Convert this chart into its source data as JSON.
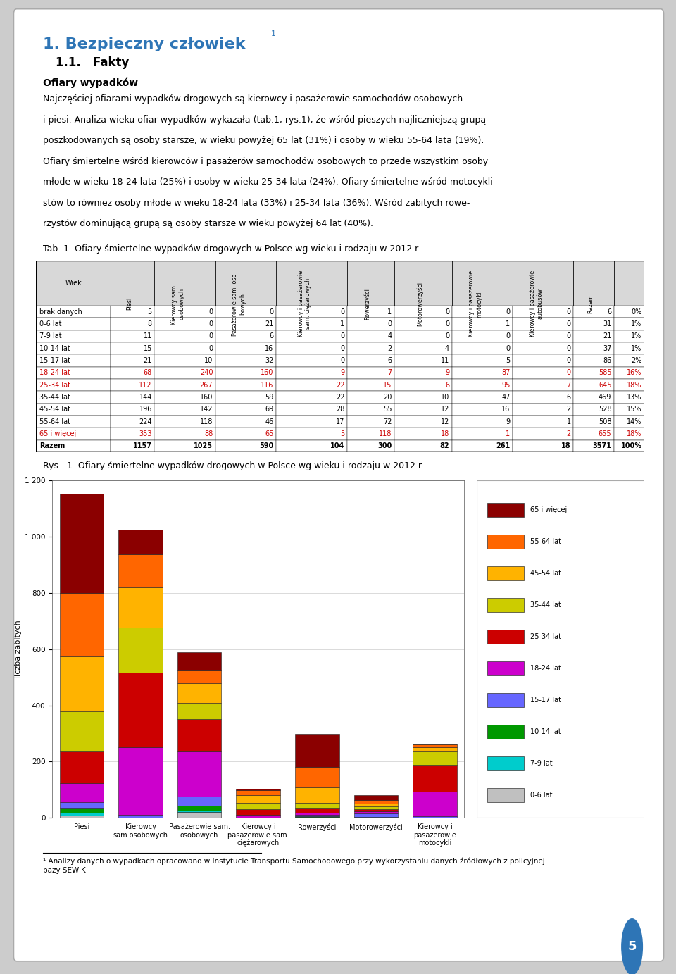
{
  "title_main": "1. Bezpieczny człowiek",
  "title_super": "1",
  "subtitle": "1.1.   Fakty",
  "section_title": "Ofiary wypadków",
  "tab_title": "Tab. 1. Ofiary śmiertelne wypadków drogowych w Polsce wg wieku i rodzaju w 2012 r.",
  "chart_title": "Rys.  1. Ofiary śmiertelne wypadków drogowych w Polsce wg wieku i rodzaju w 2012 r.",
  "row_labels": [
    "brak danych",
    "0-6 lat",
    "7-9 lat",
    "10-14 lat",
    "15-17 lat",
    "18-24 lat",
    "25-34 lat",
    "35-44 lat",
    "45-54 lat",
    "55-64 lat",
    "65 i więcej",
    "Razem"
  ],
  "highlighted_rows": [
    5,
    6,
    10
  ],
  "table_data": [
    [
      5,
      0,
      0,
      0,
      1,
      0,
      0,
      0,
      6,
      "0%"
    ],
    [
      8,
      0,
      21,
      1,
      0,
      0,
      1,
      0,
      31,
      "1%"
    ],
    [
      11,
      0,
      6,
      0,
      4,
      0,
      0,
      0,
      21,
      "1%"
    ],
    [
      15,
      0,
      16,
      0,
      2,
      4,
      0,
      0,
      37,
      "1%"
    ],
    [
      21,
      10,
      32,
      0,
      6,
      11,
      5,
      0,
      86,
      "2%"
    ],
    [
      68,
      240,
      160,
      9,
      7,
      9,
      87,
      0,
      585,
      "16%"
    ],
    [
      112,
      267,
      116,
      22,
      15,
      6,
      95,
      7,
      645,
      "18%"
    ],
    [
      144,
      160,
      59,
      22,
      20,
      10,
      47,
      6,
      469,
      "13%"
    ],
    [
      196,
      142,
      69,
      28,
      55,
      12,
      16,
      2,
      528,
      "15%"
    ],
    [
      224,
      118,
      46,
      17,
      72,
      12,
      9,
      1,
      508,
      "14%"
    ],
    [
      353,
      88,
      65,
      5,
      118,
      18,
      1,
      2,
      655,
      "18%"
    ],
    [
      1157,
      1025,
      590,
      104,
      300,
      82,
      261,
      18,
      3571,
      "100%"
    ]
  ],
  "col_header_texts": [
    "Wiek",
    "Piesi",
    "Kierowcy sam.\nosobowych",
    "Pasażerowie sam. oso-\nbowych",
    "Kierowcy i pasażerowie\nsam. ciężarowych",
    "Rowerzyści",
    "Motorowerzyści",
    "Kierowcy i pasażerowie\nmotocykli",
    "Kierowcy i pasażerowie\nautobusów",
    "Razem"
  ],
  "age_groups": [
    "0-6 lat",
    "7-9 lat",
    "10-14 lat",
    "15-17 lat",
    "18-24 lat",
    "25-34 lat",
    "35-44 lat",
    "45-54 lat",
    "55-64 lat",
    "65 i więcej"
  ],
  "bar_categories": [
    "Piesi",
    "Kierowcy\nsam.osobowych",
    "Pasażerowie sam.\nosobowych",
    "Kierowcy i\npasażerowie sam.\nciężarowych",
    "Rowerzyści",
    "Motorowerzyści",
    "Kierowcy i\npasażerowie\nmotocykli"
  ],
  "bar_data": {
    "0-6 lat": [
      8,
      0,
      21,
      1,
      0,
      0,
      1
    ],
    "7-9 lat": [
      11,
      0,
      6,
      0,
      4,
      0,
      0
    ],
    "10-14 lat": [
      15,
      0,
      16,
      0,
      2,
      4,
      0
    ],
    "15-17 lat": [
      21,
      10,
      32,
      0,
      6,
      11,
      5
    ],
    "18-24 lat": [
      68,
      240,
      160,
      9,
      7,
      9,
      87
    ],
    "25-34 lat": [
      112,
      267,
      116,
      22,
      15,
      6,
      95
    ],
    "35-44 lat": [
      144,
      160,
      59,
      22,
      20,
      10,
      47
    ],
    "45-54 lat": [
      196,
      142,
      69,
      28,
      55,
      12,
      16
    ],
    "55-64 lat": [
      224,
      118,
      46,
      17,
      72,
      12,
      9
    ],
    "65 i więcej": [
      353,
      88,
      65,
      5,
      118,
      18,
      1
    ]
  },
  "age_colors": {
    "65 i więcej": "#8B0000",
    "55-64 lat": "#FF6600",
    "45-54 lat": "#FFB300",
    "35-44 lat": "#CCCC00",
    "25-34 lat": "#CC0000",
    "18-24 lat": "#CC00CC",
    "15-17 lat": "#6666FF",
    "10-14 lat": "#009900",
    "7-9 lat": "#00CCCC",
    "0-6 lat": "#C0C0C0"
  },
  "footnote": "¹ Analizy danych o wypadkach opracowano w Instytucie Transportu Samochodowego przy wykorzystaniu danych źródłowych z policyjnej\nbazy SEWiK"
}
